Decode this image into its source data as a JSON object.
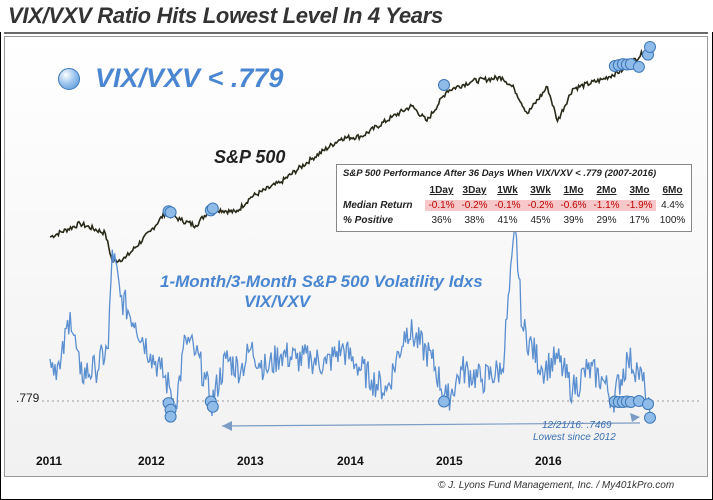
{
  "title": "VIX/VXV Ratio Hits Lowest Level In 4 Years",
  "legend_label": "VIX/VXV < .779",
  "source": "© J. Lyons Fund Management, Inc. / My401kPro.com",
  "colors": {
    "sp500_line": "#2a2a1a",
    "ratio_line": "#5b8fd0",
    "marker": "#4c8ed5",
    "negative_bg": "#f7c8c9",
    "negative_text": "#c00000"
  },
  "chart_data": {
    "type": "line",
    "x_ticks": [
      "2011",
      "2012",
      "2013",
      "2014",
      "2015",
      "2016"
    ],
    "threshold": {
      "value": 0.779,
      "label": ".779"
    },
    "series": [
      {
        "name": "S&P 500",
        "x": [
          2011.0,
          2011.3,
          2011.55,
          2011.62,
          2011.75,
          2012.0,
          2012.15,
          2012.3,
          2012.45,
          2012.6,
          2012.85,
          2013.0,
          2013.3,
          2013.6,
          2013.9,
          2014.1,
          2014.4,
          2014.6,
          2014.75,
          2014.95,
          2015.2,
          2015.5,
          2015.62,
          2015.75,
          2015.95,
          2016.05,
          2016.2,
          2016.5,
          2016.7,
          2016.97
        ],
        "values": [
          1270,
          1340,
          1290,
          1140,
          1160,
          1300,
          1400,
          1360,
          1330,
          1420,
          1400,
          1480,
          1560,
          1680,
          1790,
          1800,
          1900,
          1960,
          1880,
          2040,
          2090,
          2110,
          2050,
          1920,
          2060,
          1880,
          2050,
          2100,
          2150,
          2270
        ]
      },
      {
        "name": "VIX/VXV",
        "x": [
          2011.0,
          2011.1,
          2011.2,
          2011.3,
          2011.45,
          2011.58,
          2011.62,
          2011.7,
          2011.85,
          2012.0,
          2012.1,
          2012.2,
          2012.25,
          2012.35,
          2012.45,
          2012.55,
          2012.6,
          2012.75,
          2012.9,
          2013.0,
          2013.15,
          2013.3,
          2013.45,
          2013.6,
          2013.75,
          2013.9,
          2014.05,
          2014.2,
          2014.35,
          2014.55,
          2014.8,
          2014.95,
          2015.1,
          2015.3,
          2015.5,
          2015.63,
          2015.7,
          2015.9,
          2016.05,
          2016.2,
          2016.35,
          2016.5,
          2016.6,
          2016.75,
          2016.85,
          2016.92,
          2016.97
        ],
        "values": [
          0.86,
          0.84,
          0.95,
          0.83,
          0.84,
          0.88,
          1.07,
          0.98,
          0.93,
          0.87,
          0.84,
          0.8,
          0.77,
          0.9,
          0.87,
          0.82,
          0.77,
          0.86,
          0.84,
          0.88,
          0.84,
          0.87,
          0.86,
          0.86,
          0.85,
          0.88,
          0.85,
          0.82,
          0.8,
          0.92,
          0.86,
          0.78,
          0.84,
          0.82,
          0.84,
          1.11,
          0.92,
          0.84,
          0.86,
          0.8,
          0.84,
          0.82,
          0.78,
          0.86,
          0.84,
          0.8,
          0.75
        ]
      }
    ],
    "signal_markers": {
      "sp500": [
        [
          2012.18,
          1405
        ],
        [
          2012.2,
          1400
        ],
        [
          2012.6,
          1410
        ],
        [
          2012.62,
          1420
        ],
        [
          2014.92,
          2070
        ],
        [
          2016.62,
          2170
        ],
        [
          2016.66,
          2175
        ],
        [
          2016.7,
          2180
        ],
        [
          2016.74,
          2178
        ],
        [
          2016.78,
          2180
        ],
        [
          2016.86,
          2165
        ],
        [
          2016.95,
          2230
        ],
        [
          2016.97,
          2270
        ]
      ],
      "ratio": [
        [
          2012.18,
          0.775
        ],
        [
          2012.2,
          0.762
        ],
        [
          2012.2,
          0.749
        ],
        [
          2012.6,
          0.778
        ],
        [
          2012.62,
          0.768
        ],
        [
          2014.92,
          0.778
        ],
        [
          2016.62,
          0.778
        ],
        [
          2016.66,
          0.777
        ],
        [
          2016.7,
          0.777
        ],
        [
          2016.74,
          0.778
        ],
        [
          2016.78,
          0.777
        ],
        [
          2016.86,
          0.779
        ],
        [
          2016.95,
          0.773
        ],
        [
          2016.97,
          0.7469
        ]
      ]
    },
    "labels": {
      "sp500": "S&P 500",
      "ratio_line1": "1-Month/3-Month S&P 500 Volatility Idxs",
      "ratio_line2": "VIX/VXV",
      "annotation_line1": "12/21/16: .7469",
      "annotation_line2": "Lowest since 2012"
    }
  },
  "table": {
    "title": "S&P 500 Performance After 36 Days When VIX/VXV < .779 (2007-2016)",
    "columns": [
      "1Day",
      "3Day",
      "1Wk",
      "3Wk",
      "1Mo",
      "2Mo",
      "3Mo",
      "6Mo"
    ],
    "rows": [
      {
        "label": "Median Return",
        "values": [
          "-0.1%",
          "-0.2%",
          "-0.1%",
          "-0.2%",
          "-0.6%",
          "-1.1%",
          "-1.9%",
          "4.4%"
        ],
        "negative": [
          true,
          true,
          true,
          true,
          true,
          true,
          true,
          false
        ]
      },
      {
        "label": "% Positive",
        "values": [
          "36%",
          "38%",
          "41%",
          "45%",
          "39%",
          "29%",
          "17%",
          "100%"
        ],
        "negative": [
          false,
          false,
          false,
          false,
          false,
          false,
          false,
          false
        ]
      }
    ]
  }
}
